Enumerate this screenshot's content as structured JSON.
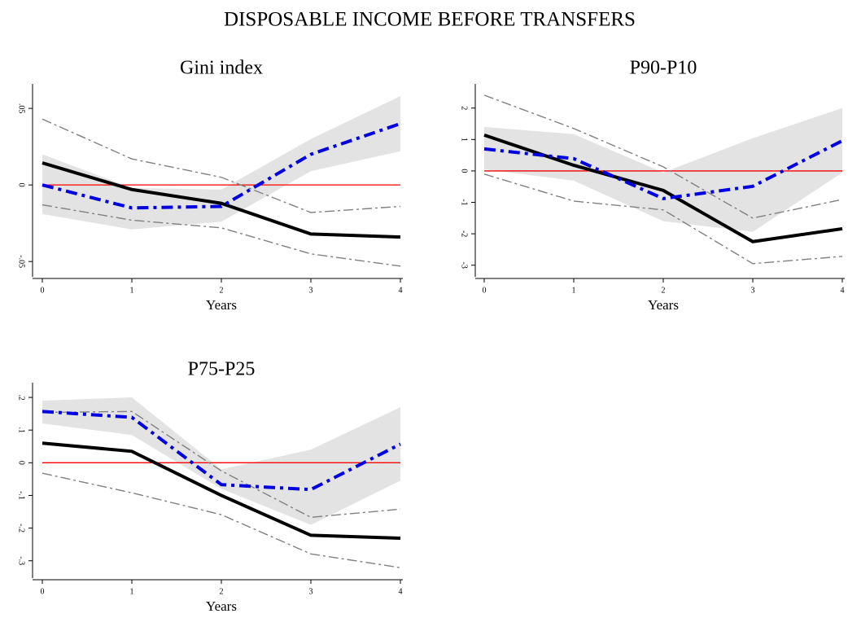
{
  "title": "DISPOSABLE INCOME BEFORE TRANSFERS",
  "chart_data": [
    {
      "type": "line",
      "title": "Gini index",
      "x_label": "Years",
      "x": [
        0,
        1,
        2,
        3,
        4
      ],
      "xlim": [
        0,
        4
      ],
      "xticks": [
        0,
        1,
        2,
        3,
        4
      ],
      "ylim": [
        -0.06,
        0.066
      ],
      "yticks": [
        {
          "value": 0.05,
          "label": ".05"
        },
        0,
        {
          "value": -0.05,
          "label": "-.05"
        }
      ],
      "hline": 0,
      "hline_color": "#ff0000",
      "band": {
        "color": "#e3e3e3",
        "upper": [
          0.02,
          -0.002,
          -0.003,
          0.03,
          0.058
        ],
        "lower": [
          -0.019,
          -0.029,
          -0.024,
          0.009,
          0.022
        ]
      },
      "series": [
        {
          "color": "#808080",
          "style": "thin-dashdot",
          "values": [
            0.043,
            0.017,
            0.005,
            -0.018,
            -0.014
          ]
        },
        {
          "color": "#808080",
          "style": "thin-dashdot",
          "values": [
            -0.013,
            -0.023,
            -0.028,
            -0.045,
            -0.053
          ]
        },
        {
          "color": "#000000",
          "style": "thick-solid",
          "values": [
            0.0144,
            -0.003,
            -0.012,
            -0.032,
            -0.034
          ]
        },
        {
          "color": "#0000e0",
          "style": "thick-dashdot",
          "values": [
            0,
            -0.015,
            -0.014,
            0.02,
            0.04
          ]
        }
      ]
    },
    {
      "type": "line",
      "title": "P90-P10",
      "x_label": "Years",
      "x": [
        0,
        1,
        2,
        3,
        4
      ],
      "xlim": [
        0,
        4
      ],
      "xticks": [
        0,
        1,
        2,
        3,
        4
      ],
      "ylim": [
        -3.37,
        2.77
      ],
      "yticks": [
        2,
        1,
        0,
        -1,
        -2,
        -3
      ],
      "hline": 0,
      "hline_color": "#ff0000",
      "band": {
        "color": "#e3e3e3",
        "upper": [
          1.4,
          1.17,
          -0.05,
          1.04,
          2.0
        ],
        "lower": [
          0.05,
          -0.31,
          -1.6,
          -1.94,
          -0.05
        ]
      },
      "series": [
        {
          "color": "#808080",
          "style": "thin-dashdot",
          "values": [
            2.41,
            1.35,
            0.13,
            -1.5,
            -0.91
          ]
        },
        {
          "color": "#808080",
          "style": "thin-dashdot",
          "values": [
            -0.1,
            -0.96,
            -1.24,
            -2.95,
            -2.72
          ]
        },
        {
          "color": "#000000",
          "style": "thick-solid",
          "values": [
            1.14,
            0.18,
            -0.62,
            -2.25,
            -1.84
          ]
        },
        {
          "color": "#0000e0",
          "style": "thick-dashdot",
          "values": [
            0.7,
            0.39,
            -0.88,
            -0.49,
            0.96
          ]
        }
      ]
    },
    {
      "type": "line",
      "title": "P75-P25",
      "x_label": "Years",
      "x": [
        0,
        1,
        2,
        3,
        4
      ],
      "xlim": [
        0,
        4
      ],
      "xticks": [
        0,
        1,
        2,
        3,
        4
      ],
      "ylim": [
        -0.353,
        0.245
      ],
      "yticks": [
        {
          "value": 0.2,
          "label": ".2"
        },
        {
          "value": 0.1,
          "label": ".1"
        },
        0,
        {
          "value": -0.1,
          "label": "-.1"
        },
        {
          "value": -0.2,
          "label": "-.2"
        },
        {
          "value": -0.3,
          "label": "-.3"
        }
      ],
      "hline": 0,
      "hline_color": "#ff0000",
      "band": {
        "color": "#e3e3e3",
        "upper": [
          0.19,
          0.2,
          -0.02,
          0.04,
          0.17
        ],
        "lower": [
          0.12,
          0.085,
          -0.08,
          -0.19,
          -0.055
        ]
      },
      "series": [
        {
          "color": "#808080",
          "style": "thin-dashdot",
          "values": [
            0.154,
            0.157,
            -0.025,
            -0.167,
            -0.142
          ]
        },
        {
          "color": "#808080",
          "style": "thin-dashdot",
          "values": [
            -0.032,
            -0.092,
            -0.159,
            -0.279,
            -0.321
          ]
        },
        {
          "color": "#000000",
          "style": "thick-solid",
          "values": [
            0.06,
            0.035,
            -0.1,
            -0.222,
            -0.231
          ]
        },
        {
          "color": "#0000e0",
          "style": "thick-dashdot",
          "values": [
            0.157,
            0.139,
            -0.067,
            -0.082,
            0.057
          ]
        }
      ]
    }
  ]
}
